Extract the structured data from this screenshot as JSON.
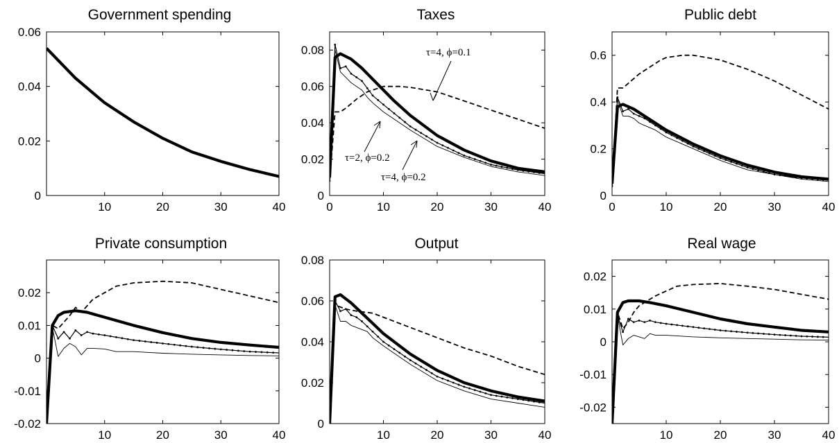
{
  "chart_data": [
    {
      "type": "line",
      "title": "Government spending",
      "xlim": [
        0,
        40
      ],
      "ylim": [
        0,
        0.06
      ],
      "xticks": [
        10,
        20,
        30,
        40
      ],
      "yticks": [
        "0",
        "0.02",
        "0.04",
        "0.06"
      ],
      "series": [
        {
          "style": "thick",
          "x": [
            0,
            5,
            10,
            15,
            20,
            25,
            30,
            35,
            40
          ],
          "y": [
            0.054,
            0.043,
            0.034,
            0.027,
            0.021,
            0.016,
            0.0125,
            0.0095,
            0.007
          ]
        }
      ]
    },
    {
      "type": "line",
      "title": "Taxes",
      "xlim": [
        0,
        40
      ],
      "ylim": [
        0,
        0.09
      ],
      "xticks": [
        0,
        10,
        20,
        30,
        40
      ],
      "yticks": [
        "0",
        "0.02",
        "0.04",
        "0.06",
        "0.08"
      ],
      "annotations": [
        "τ=4, ϕ=0.1",
        "τ=2, ϕ=0.2",
        "τ=4, ϕ=0.2"
      ],
      "series": [
        {
          "style": "thick",
          "x": [
            0,
            1,
            2,
            4,
            6,
            8,
            10,
            12,
            15,
            20,
            25,
            30,
            35,
            40
          ],
          "y": [
            0.01,
            0.076,
            0.078,
            0.075,
            0.07,
            0.064,
            0.058,
            0.052,
            0.044,
            0.033,
            0.025,
            0.019,
            0.015,
            0.013
          ]
        },
        {
          "style": "dashed",
          "x": [
            0,
            1,
            2,
            3,
            5,
            7,
            10,
            13,
            15,
            20,
            25,
            30,
            35,
            40
          ],
          "y": [
            0.008,
            0.046,
            0.046,
            0.048,
            0.053,
            0.057,
            0.06,
            0.06,
            0.0595,
            0.057,
            0.052,
            0.047,
            0.042,
            0.037
          ]
        },
        {
          "style": "dotted-line",
          "x": [
            0,
            1,
            2,
            3,
            4,
            5,
            6,
            8,
            10,
            15,
            20,
            25,
            30,
            35,
            40
          ],
          "y": [
            0.008,
            0.083,
            0.07,
            0.071,
            0.067,
            0.065,
            0.063,
            0.055,
            0.05,
            0.038,
            0.029,
            0.022,
            0.017,
            0.014,
            0.012
          ]
        },
        {
          "style": "thin",
          "x": [
            0,
            1,
            2,
            3,
            4,
            5,
            6,
            7,
            8,
            10,
            15,
            20,
            25,
            30,
            35,
            40
          ],
          "y": [
            0.008,
            0.08,
            0.068,
            0.065,
            0.062,
            0.06,
            0.058,
            0.054,
            0.051,
            0.046,
            0.036,
            0.027,
            0.021,
            0.016,
            0.013,
            0.011
          ]
        }
      ]
    },
    {
      "type": "line",
      "title": "Public debt",
      "xlim": [
        0,
        40
      ],
      "ylim": [
        0,
        0.7
      ],
      "xticks": [
        0,
        10,
        20,
        30,
        40
      ],
      "yticks": [
        "0",
        "0.2",
        "0.4",
        "0.6"
      ],
      "series": [
        {
          "style": "thick",
          "x": [
            0,
            1,
            2,
            4,
            6,
            8,
            10,
            15,
            20,
            25,
            30,
            35,
            40
          ],
          "y": [
            0.05,
            0.38,
            0.39,
            0.37,
            0.34,
            0.31,
            0.28,
            0.22,
            0.17,
            0.13,
            0.1,
            0.08,
            0.07
          ]
        },
        {
          "style": "dashed",
          "x": [
            0,
            1,
            2,
            3,
            5,
            7,
            9,
            10,
            13,
            15,
            20,
            25,
            30,
            35,
            40
          ],
          "y": [
            0.04,
            0.46,
            0.46,
            0.48,
            0.52,
            0.55,
            0.58,
            0.59,
            0.6,
            0.6,
            0.58,
            0.54,
            0.49,
            0.43,
            0.37
          ]
        },
        {
          "style": "dotted-line",
          "x": [
            0,
            1,
            2,
            3,
            4,
            5,
            6,
            8,
            10,
            15,
            20,
            25,
            30,
            35,
            40
          ],
          "y": [
            0.04,
            0.42,
            0.36,
            0.37,
            0.35,
            0.34,
            0.33,
            0.3,
            0.27,
            0.21,
            0.16,
            0.12,
            0.09,
            0.075,
            0.065
          ]
        },
        {
          "style": "thin",
          "x": [
            0,
            1,
            2,
            3,
            4,
            5,
            6,
            8,
            10,
            15,
            20,
            25,
            30,
            35,
            40
          ],
          "y": [
            0.04,
            0.41,
            0.34,
            0.34,
            0.33,
            0.31,
            0.3,
            0.28,
            0.25,
            0.2,
            0.15,
            0.11,
            0.09,
            0.07,
            0.06
          ]
        }
      ]
    },
    {
      "type": "line",
      "title": "Private consumption",
      "xlim": [
        0,
        40
      ],
      "ylim": [
        -0.02,
        0.03
      ],
      "xticks": [
        10,
        20,
        30,
        40
      ],
      "yticks": [
        "-0.02",
        "-0.01",
        "0",
        "0.01",
        "0.02"
      ],
      "series": [
        {
          "style": "thick",
          "x": [
            0,
            1,
            2,
            3,
            5,
            7,
            10,
            15,
            20,
            25,
            30,
            35,
            40
          ],
          "y": [
            -0.02,
            0.01,
            0.013,
            0.014,
            0.0145,
            0.014,
            0.0125,
            0.01,
            0.0078,
            0.006,
            0.0048,
            0.004,
            0.0033
          ]
        },
        {
          "style": "dashed",
          "x": [
            0,
            1,
            2,
            3,
            4,
            5,
            6,
            8,
            10,
            12,
            15,
            20,
            25,
            30,
            35,
            40
          ],
          "y": [
            -0.02,
            0.01,
            0.009,
            0.011,
            0.013,
            0.0155,
            0.014,
            0.018,
            0.02,
            0.022,
            0.023,
            0.0235,
            0.023,
            0.021,
            0.019,
            0.017
          ]
        },
        {
          "style": "dotted-line",
          "x": [
            0,
            1,
            2,
            3,
            4,
            5,
            6,
            7,
            8,
            10,
            15,
            20,
            25,
            30,
            35,
            40
          ],
          "y": [
            -0.02,
            0.01,
            0.006,
            0.008,
            0.006,
            0.0085,
            0.007,
            0.008,
            0.0075,
            0.007,
            0.0055,
            0.0045,
            0.0035,
            0.0027,
            0.002,
            0.0016
          ]
        },
        {
          "style": "thin",
          "x": [
            0,
            1,
            2,
            3,
            4,
            5,
            6,
            7,
            8,
            10,
            12,
            15,
            20,
            25,
            30,
            35,
            40
          ],
          "y": [
            -0.02,
            0.0095,
            0.0005,
            0.003,
            0.0045,
            0.0035,
            0.001,
            0.003,
            0.003,
            0.0028,
            0.002,
            0.002,
            0.0015,
            0.0012,
            0.001,
            0.0008,
            0.0007
          ]
        }
      ]
    },
    {
      "type": "line",
      "title": "Output",
      "xlim": [
        0,
        40
      ],
      "ylim": [
        0,
        0.08
      ],
      "xticks": [
        10,
        20,
        30,
        40
      ],
      "yticks": [
        "0",
        "0.02",
        "0.04",
        "0.06",
        "0.08"
      ],
      "series": [
        {
          "style": "thick",
          "x": [
            0,
            1,
            2,
            4,
            6,
            8,
            10,
            15,
            20,
            25,
            30,
            35,
            40
          ],
          "y": [
            0.0,
            0.062,
            0.063,
            0.059,
            0.054,
            0.049,
            0.044,
            0.034,
            0.026,
            0.02,
            0.016,
            0.013,
            0.011
          ]
        },
        {
          "style": "dashed",
          "x": [
            0,
            1,
            2,
            3,
            5,
            8,
            10,
            15,
            20,
            25,
            30,
            35,
            40
          ],
          "y": [
            0.0,
            0.058,
            0.057,
            0.056,
            0.055,
            0.054,
            0.052,
            0.047,
            0.042,
            0.037,
            0.033,
            0.028,
            0.024
          ]
        },
        {
          "style": "dotted-line",
          "x": [
            0,
            1,
            2,
            3,
            4,
            5,
            6,
            8,
            10,
            15,
            20,
            25,
            30,
            35,
            40
          ],
          "y": [
            0.0,
            0.06,
            0.055,
            0.056,
            0.053,
            0.052,
            0.05,
            0.045,
            0.04,
            0.031,
            0.023,
            0.018,
            0.014,
            0.012,
            0.01
          ]
        },
        {
          "style": "thin",
          "x": [
            0,
            1,
            2,
            3,
            4,
            5,
            6,
            7,
            8,
            10,
            15,
            20,
            25,
            30,
            35,
            40
          ],
          "y": [
            0.0,
            0.058,
            0.05,
            0.05,
            0.048,
            0.047,
            0.046,
            0.045,
            0.042,
            0.038,
            0.029,
            0.021,
            0.016,
            0.012,
            0.01,
            0.008
          ]
        }
      ]
    },
    {
      "type": "line",
      "title": "Real wage",
      "xlim": [
        0,
        40
      ],
      "ylim": [
        -0.025,
        0.025
      ],
      "xticks": [
        10,
        20,
        30,
        40
      ],
      "yticks": [
        "-0.02",
        "-0.01",
        "0",
        "0.01",
        "0.02"
      ],
      "series": [
        {
          "style": "thick",
          "x": [
            0,
            1,
            2,
            3,
            5,
            7,
            10,
            15,
            20,
            25,
            30,
            35,
            40
          ],
          "y": [
            -0.025,
            0.009,
            0.012,
            0.0125,
            0.0125,
            0.012,
            0.011,
            0.009,
            0.007,
            0.0055,
            0.0045,
            0.0035,
            0.003
          ]
        },
        {
          "style": "dashed",
          "x": [
            0,
            1,
            2,
            3,
            4,
            5,
            6,
            8,
            10,
            12,
            15,
            20,
            25,
            30,
            35,
            40
          ],
          "y": [
            -0.025,
            0.009,
            0.004,
            0.006,
            0.009,
            0.011,
            0.012,
            0.014,
            0.0155,
            0.017,
            0.0175,
            0.0178,
            0.017,
            0.016,
            0.0145,
            0.013
          ]
        },
        {
          "style": "dotted-line",
          "x": [
            0,
            1,
            2,
            3,
            4,
            5,
            6,
            7,
            8,
            10,
            15,
            20,
            25,
            30,
            35,
            40
          ],
          "y": [
            -0.025,
            0.008,
            0.003,
            0.007,
            0.006,
            0.0065,
            0.006,
            0.0065,
            0.006,
            0.0055,
            0.0045,
            0.0035,
            0.0028,
            0.0022,
            0.0017,
            0.0014
          ]
        },
        {
          "style": "thin",
          "x": [
            0,
            1,
            2,
            3,
            4,
            5,
            6,
            7,
            8,
            10,
            15,
            20,
            25,
            30,
            35,
            40
          ],
          "y": [
            -0.025,
            0.008,
            -0.001,
            0.001,
            0.002,
            0.0015,
            0.001,
            0.0025,
            0.002,
            0.002,
            0.0015,
            0.0012,
            0.001,
            0.0008,
            0.0006,
            0.0005
          ]
        }
      ]
    }
  ]
}
